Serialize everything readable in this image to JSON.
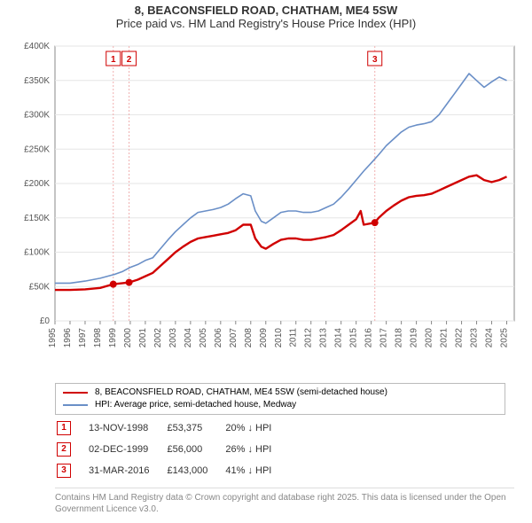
{
  "title_line1": "8, BEACONSFIELD ROAD, CHATHAM, ME4 5SW",
  "title_line2": "Price paid vs. HM Land Registry's House Price Index (HPI)",
  "chart": {
    "type": "line",
    "background_color": "#ffffff",
    "grid_color": "#e6e6e6",
    "axis_color": "#888888",
    "label_fontsize": 10,
    "label_color": "#555555",
    "xlim": [
      1995,
      2025.5
    ],
    "ylim": [
      0,
      400000
    ],
    "ytick_step": 50000,
    "yticks": [
      "£0",
      "£50K",
      "£100K",
      "£150K",
      "£200K",
      "£250K",
      "£300K",
      "£350K",
      "£400K"
    ],
    "xticks": [
      1995,
      1996,
      1997,
      1998,
      1999,
      2000,
      2001,
      2002,
      2003,
      2004,
      2005,
      2006,
      2007,
      2008,
      2009,
      2010,
      2011,
      2012,
      2013,
      2014,
      2015,
      2016,
      2017,
      2018,
      2019,
      2020,
      2021,
      2022,
      2023,
      2024,
      2025
    ],
    "series": [
      {
        "name": "price_paid",
        "color": "#d00000",
        "width": 2.4,
        "points": [
          [
            1995.0,
            45000
          ],
          [
            1996.0,
            45000
          ],
          [
            1997.0,
            46000
          ],
          [
            1998.0,
            48000
          ],
          [
            1998.87,
            53375
          ],
          [
            1999.5,
            55000
          ],
          [
            1999.92,
            56000
          ],
          [
            2000.5,
            60000
          ],
          [
            2001.0,
            65000
          ],
          [
            2001.5,
            70000
          ],
          [
            2002.0,
            80000
          ],
          [
            2002.5,
            90000
          ],
          [
            2003.0,
            100000
          ],
          [
            2003.5,
            108000
          ],
          [
            2004.0,
            115000
          ],
          [
            2004.5,
            120000
          ],
          [
            2005.0,
            122000
          ],
          [
            2005.5,
            124000
          ],
          [
            2006.0,
            126000
          ],
          [
            2006.5,
            128000
          ],
          [
            2007.0,
            132000
          ],
          [
            2007.5,
            140000
          ],
          [
            2008.0,
            140000
          ],
          [
            2008.3,
            120000
          ],
          [
            2008.7,
            108000
          ],
          [
            2009.0,
            105000
          ],
          [
            2009.5,
            112000
          ],
          [
            2010.0,
            118000
          ],
          [
            2010.5,
            120000
          ],
          [
            2011.0,
            120000
          ],
          [
            2011.5,
            118000
          ],
          [
            2012.0,
            118000
          ],
          [
            2012.5,
            120000
          ],
          [
            2013.0,
            122000
          ],
          [
            2013.5,
            125000
          ],
          [
            2014.0,
            132000
          ],
          [
            2014.5,
            140000
          ],
          [
            2015.0,
            148000
          ],
          [
            2015.3,
            160000
          ],
          [
            2015.5,
            140000
          ],
          [
            2016.0,
            142000
          ],
          [
            2016.24,
            143000
          ],
          [
            2016.5,
            150000
          ],
          [
            2017.0,
            160000
          ],
          [
            2017.5,
            168000
          ],
          [
            2018.0,
            175000
          ],
          [
            2018.5,
            180000
          ],
          [
            2019.0,
            182000
          ],
          [
            2019.5,
            183000
          ],
          [
            2020.0,
            185000
          ],
          [
            2020.5,
            190000
          ],
          [
            2021.0,
            195000
          ],
          [
            2021.5,
            200000
          ],
          [
            2022.0,
            205000
          ],
          [
            2022.5,
            210000
          ],
          [
            2023.0,
            212000
          ],
          [
            2023.5,
            205000
          ],
          [
            2024.0,
            202000
          ],
          [
            2024.5,
            205000
          ],
          [
            2025.0,
            210000
          ]
        ]
      },
      {
        "name": "hpi",
        "color": "#6a8fc7",
        "width": 1.6,
        "points": [
          [
            1995.0,
            55000
          ],
          [
            1996.0,
            55000
          ],
          [
            1997.0,
            58000
          ],
          [
            1998.0,
            62000
          ],
          [
            1999.0,
            68000
          ],
          [
            1999.5,
            72000
          ],
          [
            2000.0,
            78000
          ],
          [
            2000.5,
            82000
          ],
          [
            2001.0,
            88000
          ],
          [
            2001.5,
            92000
          ],
          [
            2002.0,
            105000
          ],
          [
            2002.5,
            118000
          ],
          [
            2003.0,
            130000
          ],
          [
            2003.5,
            140000
          ],
          [
            2004.0,
            150000
          ],
          [
            2004.5,
            158000
          ],
          [
            2005.0,
            160000
          ],
          [
            2005.5,
            162000
          ],
          [
            2006.0,
            165000
          ],
          [
            2006.5,
            170000
          ],
          [
            2007.0,
            178000
          ],
          [
            2007.5,
            185000
          ],
          [
            2008.0,
            182000
          ],
          [
            2008.3,
            160000
          ],
          [
            2008.7,
            145000
          ],
          [
            2009.0,
            142000
          ],
          [
            2009.5,
            150000
          ],
          [
            2010.0,
            158000
          ],
          [
            2010.5,
            160000
          ],
          [
            2011.0,
            160000
          ],
          [
            2011.5,
            158000
          ],
          [
            2012.0,
            158000
          ],
          [
            2012.5,
            160000
          ],
          [
            2013.0,
            165000
          ],
          [
            2013.5,
            170000
          ],
          [
            2014.0,
            180000
          ],
          [
            2014.5,
            192000
          ],
          [
            2015.0,
            205000
          ],
          [
            2015.5,
            218000
          ],
          [
            2016.0,
            230000
          ],
          [
            2016.5,
            242000
          ],
          [
            2017.0,
            255000
          ],
          [
            2017.5,
            265000
          ],
          [
            2018.0,
            275000
          ],
          [
            2018.5,
            282000
          ],
          [
            2019.0,
            285000
          ],
          [
            2019.5,
            287000
          ],
          [
            2020.0,
            290000
          ],
          [
            2020.5,
            300000
          ],
          [
            2021.0,
            315000
          ],
          [
            2021.5,
            330000
          ],
          [
            2022.0,
            345000
          ],
          [
            2022.5,
            360000
          ],
          [
            2023.0,
            350000
          ],
          [
            2023.5,
            340000
          ],
          [
            2024.0,
            348000
          ],
          [
            2024.5,
            355000
          ],
          [
            2025.0,
            350000
          ]
        ]
      }
    ],
    "markers": [
      {
        "label": "1",
        "x": 1998.87,
        "y": 53375,
        "vline_color": "#f0b0b0"
      },
      {
        "label": "2",
        "x": 1999.92,
        "y": 56000,
        "vline_color": "#f0b0b0"
      },
      {
        "label": "3",
        "x": 2016.24,
        "y": 143000,
        "vline_color": "#f0b0b0"
      }
    ],
    "marker_box": {
      "border": "#d00000",
      "text": "#d00000",
      "bg": "#ffffff",
      "fontsize": 10
    },
    "sale_dot": {
      "color": "#d00000",
      "radius": 4
    }
  },
  "legend": {
    "items": [
      {
        "color": "#d00000",
        "width": 2.4,
        "label": "8, BEACONSFIELD ROAD, CHATHAM, ME4 5SW (semi-detached house)"
      },
      {
        "color": "#6a8fc7",
        "width": 1.6,
        "label": "HPI: Average price, semi-detached house, Medway"
      }
    ]
  },
  "events": [
    {
      "n": "1",
      "date": "13-NOV-1998",
      "price": "£53,375",
      "delta": "20% ↓ HPI"
    },
    {
      "n": "2",
      "date": "02-DEC-1999",
      "price": "£56,000",
      "delta": "26% ↓ HPI"
    },
    {
      "n": "3",
      "date": "31-MAR-2016",
      "price": "£143,000",
      "delta": "41% ↓ HPI"
    }
  ],
  "footer": "Contains HM Land Registry data © Crown copyright and database right 2025. This data is licensed under the Open Government Licence v3.0."
}
